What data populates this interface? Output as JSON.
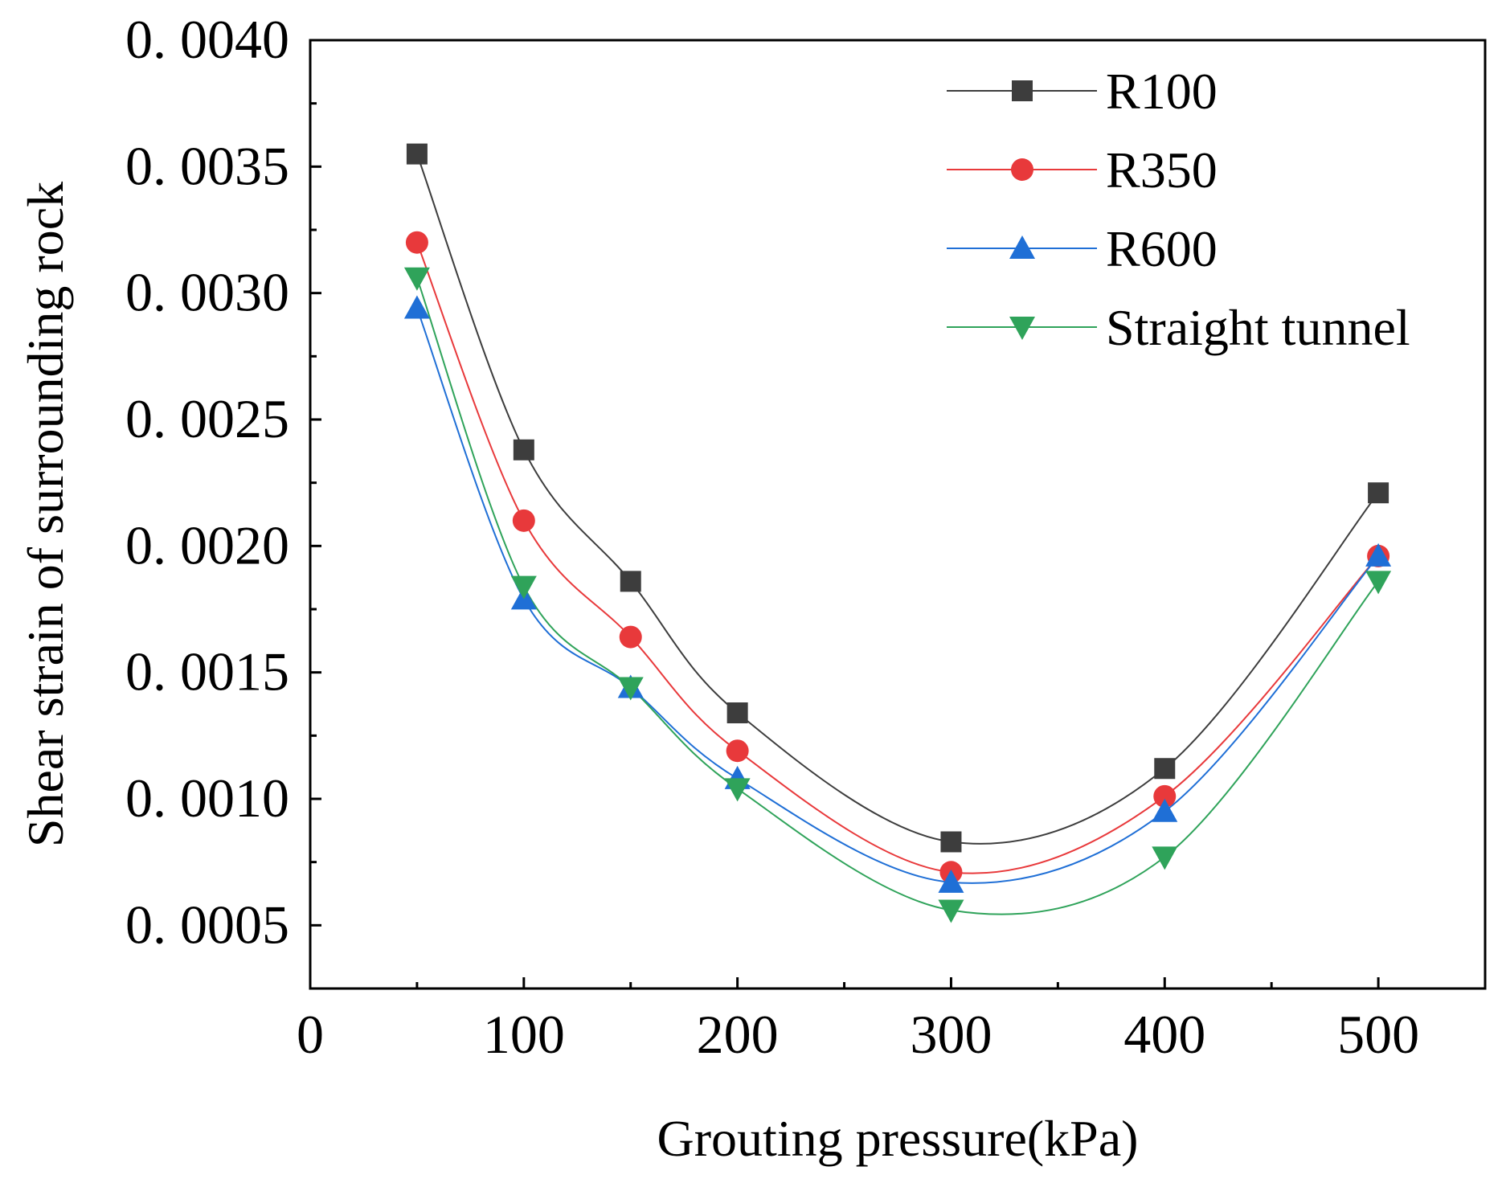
{
  "chart_data": {
    "type": "line",
    "title": "",
    "xlabel": "Grouting pressure(kPa)",
    "ylabel": "Shear strain of surrounding rock",
    "xlim": [
      0,
      550
    ],
    "ylim": [
      0.00025,
      0.004
    ],
    "x_ticks": [
      0,
      100,
      200,
      300,
      400,
      500
    ],
    "x_tick_labels": [
      "0",
      "100",
      "200",
      "300",
      "400",
      "500"
    ],
    "y_ticks": [
      0.0005,
      0.001,
      0.0015,
      0.002,
      0.0025,
      0.003,
      0.0035,
      0.004
    ],
    "y_tick_labels": [
      "0. 0005",
      "0. 0010",
      "0. 0015",
      "0. 0020",
      "0. 0025",
      "0. 0030",
      "0. 0035",
      "0. 0040"
    ],
    "grid": false,
    "legend_position": "top-right",
    "x": [
      50,
      100,
      150,
      200,
      300,
      400,
      500
    ],
    "series": [
      {
        "name": "R100",
        "color": "#3d3d3d",
        "marker": "square",
        "values": [
          0.00355,
          0.00238,
          0.00186,
          0.00134,
          0.00083,
          0.00112,
          0.00221
        ]
      },
      {
        "name": "R350",
        "color": "#e8393b",
        "marker": "circle",
        "values": [
          0.0032,
          0.0021,
          0.00164,
          0.00119,
          0.00071,
          0.00101,
          0.00196
        ]
      },
      {
        "name": "R600",
        "color": "#1f6fd6",
        "marker": "triangle-up",
        "values": [
          0.00294,
          0.00179,
          0.00144,
          0.00108,
          0.00067,
          0.00095,
          0.00196
        ]
      },
      {
        "name": "Straight tunnel",
        "color": "#2fa35a",
        "marker": "triangle-down",
        "values": [
          0.00306,
          0.00184,
          0.00144,
          0.00104,
          0.00056,
          0.00077,
          0.00186
        ]
      }
    ]
  }
}
